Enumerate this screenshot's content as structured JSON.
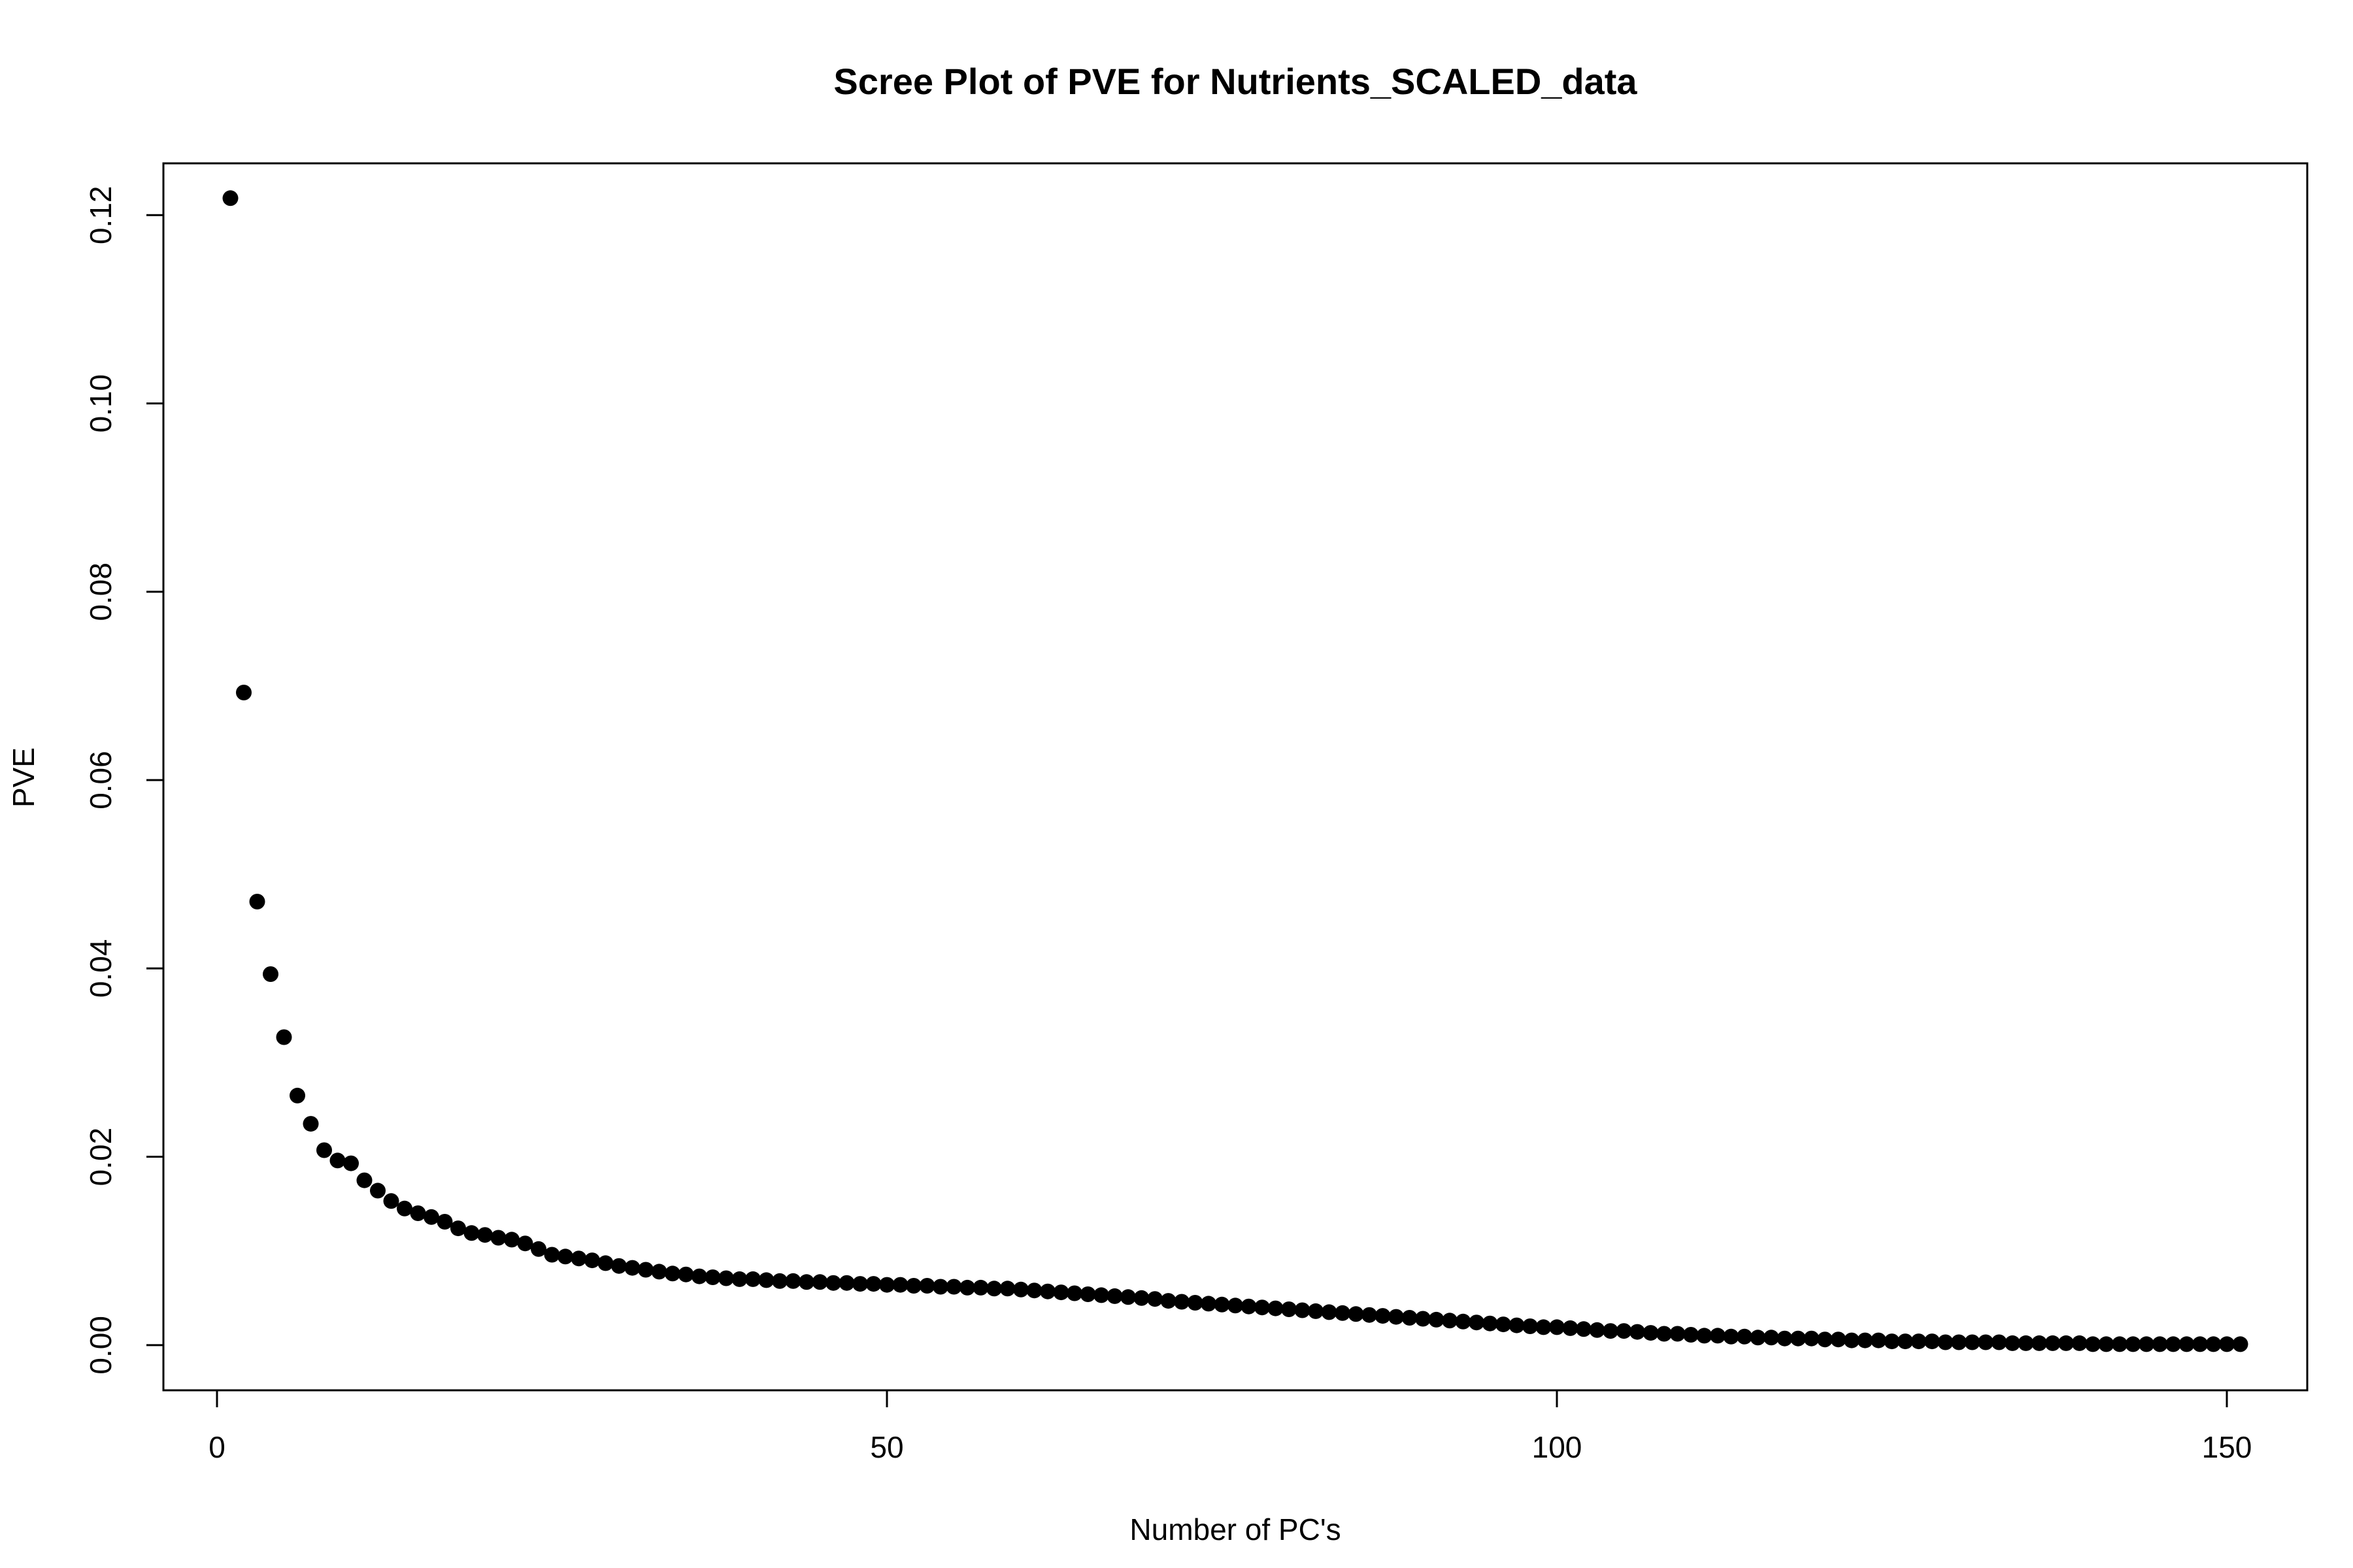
{
  "chart_data": {
    "type": "scatter",
    "title": "Scree Plot of PVE for Nutrients_SCALED_data",
    "xlabel": "Number of PC's",
    "ylabel": "PVE",
    "xlim": [
      -4,
      156
    ],
    "ylim": [
      -0.0048,
      0.1255
    ],
    "x_ticks": [
      0,
      50,
      100,
      150
    ],
    "x_tick_labels": [
      "0",
      "50",
      "100",
      "150"
    ],
    "y_ticks": [
      0.0,
      0.02,
      0.04,
      0.06,
      0.08,
      0.1,
      0.12
    ],
    "y_tick_labels": [
      "0.00",
      "0.02",
      "0.04",
      "0.06",
      "0.08",
      "0.10",
      "0.12"
    ],
    "grid": false,
    "legend": "none",
    "marker_color": "#000000",
    "x": [
      1,
      2,
      3,
      4,
      5,
      6,
      7,
      8,
      9,
      10,
      11,
      12,
      13,
      14,
      15,
      16,
      17,
      18,
      19,
      20,
      21,
      22,
      23,
      24,
      25,
      26,
      27,
      28,
      29,
      30,
      31,
      32,
      33,
      34,
      35,
      36,
      37,
      38,
      39,
      40,
      41,
      42,
      43,
      44,
      45,
      46,
      47,
      48,
      49,
      50,
      51,
      52,
      53,
      54,
      55,
      56,
      57,
      58,
      59,
      60,
      61,
      62,
      63,
      64,
      65,
      66,
      67,
      68,
      69,
      70,
      71,
      72,
      73,
      74,
      75,
      76,
      77,
      78,
      79,
      80,
      81,
      82,
      83,
      84,
      85,
      86,
      87,
      88,
      89,
      90,
      91,
      92,
      93,
      94,
      95,
      96,
      97,
      98,
      99,
      100,
      101,
      102,
      103,
      104,
      105,
      106,
      107,
      108,
      109,
      110,
      111,
      112,
      113,
      114,
      115,
      116,
      117,
      118,
      119,
      120,
      121,
      122,
      123,
      124,
      125,
      126,
      127,
      128,
      129,
      130,
      131,
      132,
      133,
      134,
      135,
      136,
      137,
      138,
      139,
      140,
      141,
      142,
      143,
      144,
      145,
      146,
      147,
      148,
      149,
      150,
      151
    ],
    "y": [
      0.1218,
      0.0693,
      0.0471,
      0.0394,
      0.0327,
      0.0265,
      0.0235,
      0.0207,
      0.0196,
      0.0193,
      0.0175,
      0.0164,
      0.0153,
      0.0145,
      0.014,
      0.0136,
      0.0131,
      0.0124,
      0.0119,
      0.0117,
      0.0114,
      0.0112,
      0.0108,
      0.0102,
      0.0096,
      0.0094,
      0.0092,
      0.009,
      0.0087,
      0.0084,
      0.0082,
      0.008,
      0.0078,
      0.0076,
      0.0075,
      0.0073,
      0.0072,
      0.0071,
      0.007,
      0.007,
      0.0069,
      0.0068,
      0.0068,
      0.0067,
      0.0067,
      0.0066,
      0.0066,
      0.0065,
      0.0065,
      0.0064,
      0.0064,
      0.0063,
      0.0063,
      0.0062,
      0.0062,
      0.0061,
      0.0061,
      0.006,
      0.006,
      0.0059,
      0.0058,
      0.0057,
      0.0056,
      0.0055,
      0.0054,
      0.0053,
      0.0052,
      0.0051,
      0.005,
      0.0049,
      0.0047,
      0.0046,
      0.0045,
      0.0044,
      0.0043,
      0.0042,
      0.0041,
      0.004,
      0.0039,
      0.0038,
      0.0037,
      0.0036,
      0.0035,
      0.0034,
      0.0033,
      0.0032,
      0.0031,
      0.003,
      0.0029,
      0.0028,
      0.0027,
      0.0026,
      0.0025,
      0.0024,
      0.0023,
      0.0022,
      0.0021,
      0.002,
      0.0019,
      0.0019,
      0.0018,
      0.0017,
      0.0016,
      0.0015,
      0.0015,
      0.0014,
      0.0013,
      0.0012,
      0.0012,
      0.0011,
      0.001,
      0.001,
      0.0009,
      0.0009,
      0.0008,
      0.0008,
      0.0007,
      0.0007,
      0.0007,
      0.0006,
      0.0006,
      0.0005,
      0.0005,
      0.0005,
      0.0004,
      0.0004,
      0.0004,
      0.0004,
      0.0003,
      0.0003,
      0.0003,
      0.0003,
      0.0003,
      0.0002,
      0.0002,
      0.0002,
      0.0002,
      0.0002,
      0.0002,
      0.0001,
      0.0001,
      0.0001,
      0.0001,
      0.0001,
      0.0001,
      0.0001,
      0.0001,
      0.0001,
      0.0001,
      0.0001,
      0.0001
    ]
  }
}
